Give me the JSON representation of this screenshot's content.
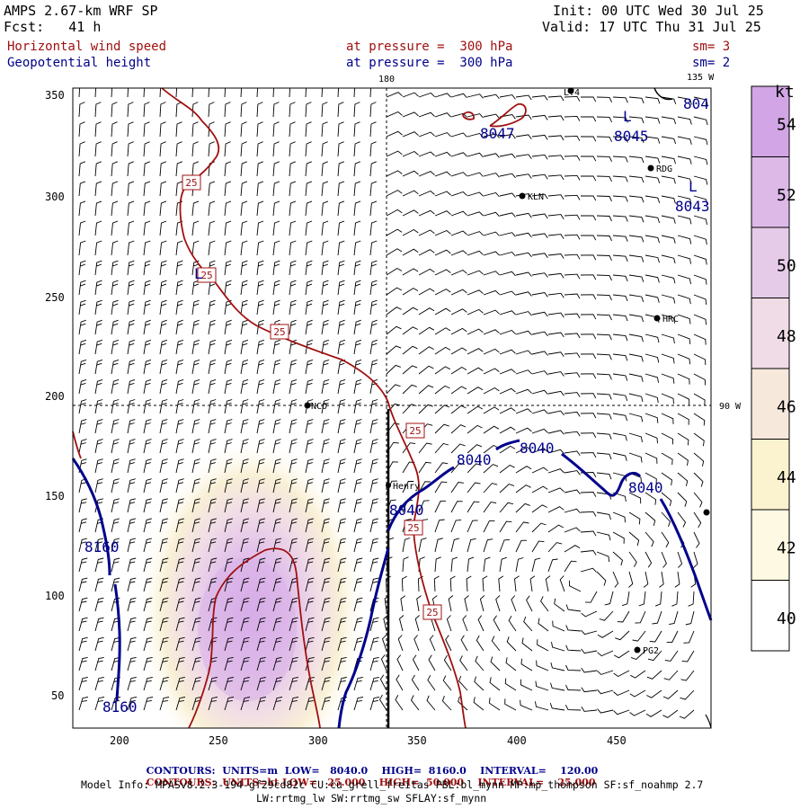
{
  "header": {
    "model": "AMPS 2.67-km WRF SP",
    "forecast": "Fcst:   41 h",
    "init": "Init: 00 UTC Wed 30 Jul 25",
    "valid": "Valid: 17 UTC Thu 31 Jul 25",
    "field1": {
      "name": "Horizontal wind speed",
      "level": "at pressure =  300 hPa",
      "smooth": "sm= 3"
    },
    "field2": {
      "name": "Geopotential height",
      "level": "at pressure =  300 hPa",
      "smooth": "sm= 2"
    }
  },
  "map": {
    "x_ticks": [
      "200",
      "250",
      "300",
      "350",
      "400",
      "450"
    ],
    "y_ticks": [
      "350",
      "300",
      "250",
      "200",
      "150",
      "100",
      "50"
    ],
    "meridians": [
      "180",
      "135 W",
      "90 W"
    ],
    "stations": [
      {
        "id": "LY4",
        "label": "LY4"
      },
      {
        "id": "RDG",
        "label": "RDG"
      },
      {
        "id": "KLN",
        "label": "KLN"
      },
      {
        "id": "HRC",
        "label": "HRC"
      },
      {
        "id": "NCO",
        "label": "NCO"
      },
      {
        "id": "Henry",
        "label": "Henry"
      },
      {
        "id": "PG2",
        "label": "PG2"
      }
    ],
    "height_labels": [
      "8047",
      "8045",
      "804",
      "8043",
      "8040",
      "8040",
      "8040",
      "8040",
      "8160",
      "8160"
    ],
    "low_markers": [
      "L",
      "L",
      "L"
    ],
    "speed_labels": [
      "25",
      "25",
      "25",
      "25",
      "25",
      "25"
    ]
  },
  "colorbar": {
    "unit": "kt",
    "ticks": [
      "54",
      "52",
      "50",
      "48",
      "46",
      "44",
      "42",
      "40"
    ],
    "colors": [
      "#d2a6e6",
      "#ddb9e8",
      "#e6cbe9",
      "#efdce6",
      "#f6e9dc",
      "#fbf3cf",
      "#fdf9e2",
      "#ffffff"
    ]
  },
  "footer": {
    "line1": {
      "label": "CONTOURS:",
      "units": "UNITS=m",
      "low": "LOW=   8040.0",
      "high": "HIGH=  8160.0",
      "interval": "INTERVAL=    120.00"
    },
    "line2": {
      "label": "CONTOURS:",
      "units": "UNITS=kt",
      "low": "LOW=   25.000",
      "high": "HIGH=  50.000",
      "interval": "INTERVAL=    25.000"
    },
    "info1": "Model Info: MPASv8.2.3-194-gf29cd82c CU:cu_grell_freitas PBL:bl_mynn MP:mp_thompson SF:sf_noahmp 2.7",
    "info2": "LW:rrtmg_lw SW:rrtmg_sw SFLAY:sf_mynn"
  }
}
